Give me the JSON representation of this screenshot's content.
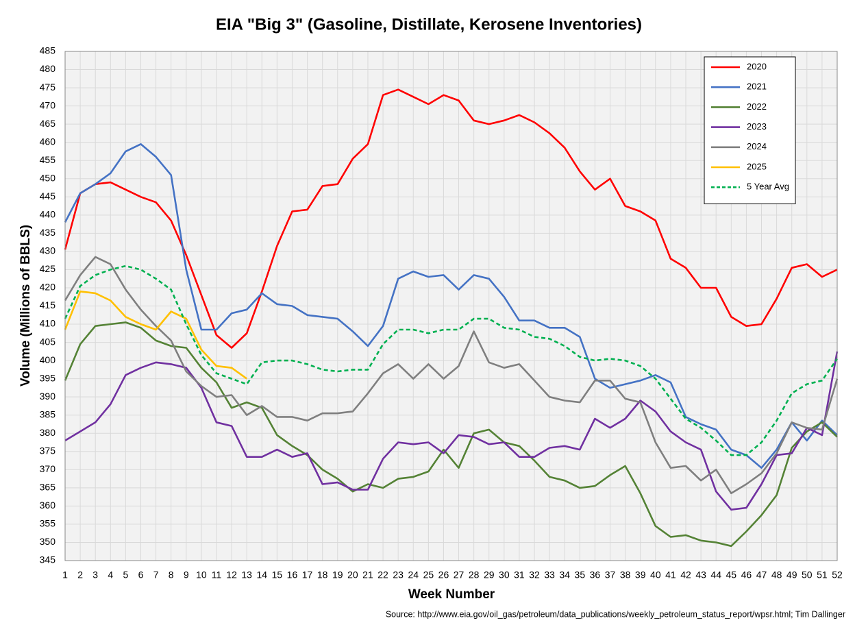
{
  "chart_data": {
    "type": "line",
    "title": "EIA \"Big 3\" (Gasoline, Distillate, Kerosene Inventories)",
    "x_label": "Week Number",
    "y_label": "Volume (Millions of BBLS)",
    "source": "Source: http://www.eia.gov/oil_gas/petroleum/data_publications/weekly_petroleum_status_report/wpsr.html; Tim Dallinger",
    "x": [
      1,
      2,
      3,
      4,
      5,
      6,
      7,
      8,
      9,
      10,
      11,
      12,
      13,
      14,
      15,
      16,
      17,
      18,
      19,
      20,
      21,
      22,
      23,
      24,
      25,
      26,
      27,
      28,
      29,
      30,
      31,
      32,
      33,
      34,
      35,
      36,
      37,
      38,
      39,
      40,
      41,
      42,
      43,
      44,
      45,
      46,
      47,
      48,
      49,
      50,
      51,
      52
    ],
    "xlim": [
      1,
      52
    ],
    "xticks": [
      1,
      2,
      3,
      4,
      5,
      6,
      7,
      8,
      9,
      10,
      11,
      12,
      13,
      14,
      15,
      16,
      17,
      18,
      19,
      20,
      21,
      22,
      23,
      24,
      25,
      26,
      27,
      28,
      29,
      30,
      31,
      32,
      33,
      34,
      35,
      36,
      37,
      38,
      39,
      40,
      41,
      42,
      43,
      44,
      45,
      46,
      47,
      48,
      49,
      50,
      51,
      52
    ],
    "ylim": [
      345,
      485
    ],
    "yticks": [
      345,
      350,
      355,
      360,
      365,
      370,
      375,
      380,
      385,
      390,
      395,
      400,
      405,
      410,
      415,
      420,
      425,
      430,
      435,
      440,
      445,
      450,
      455,
      460,
      465,
      470,
      475,
      480,
      485
    ],
    "grid": true,
    "legend": "top-right",
    "series": [
      {
        "name": "2020",
        "color": "#ff0000",
        "values": [
          430.5,
          446,
          448.5,
          449,
          447,
          445,
          443.5,
          438.5,
          429,
          418,
          407,
          403.5,
          407.5,
          419,
          431.5,
          441,
          441.5,
          448,
          448.5,
          455.5,
          459.5,
          473,
          474.5,
          472.5,
          470.5,
          473,
          471.5,
          466,
          465,
          466,
          467.5,
          465.5,
          462.5,
          458.5,
          452,
          447,
          450,
          442.5,
          441,
          438.5,
          428,
          425.5,
          420,
          420,
          412,
          409.5,
          410,
          417,
          425.5,
          426.5,
          423,
          425
        ]
      },
      {
        "name": "2021",
        "color": "#4472c4",
        "values": [
          438,
          446,
          448.5,
          451.5,
          457.5,
          459.5,
          456,
          451,
          425,
          408.5,
          408.5,
          413,
          414,
          418.5,
          415.5,
          415,
          412.5,
          412,
          411.5,
          408,
          404,
          409.5,
          422.5,
          424.5,
          423,
          423.5,
          419.5,
          423.5,
          422.5,
          417.5,
          411,
          411,
          409,
          409,
          406.5,
          395,
          392.5,
          393.5,
          394.5,
          396,
          394,
          384.5,
          382.5,
          381,
          375.5,
          374,
          370.5,
          375.5,
          383,
          378,
          383.5,
          379.5
        ]
      },
      {
        "name": "2022",
        "color": "#548235",
        "values": [
          394.5,
          404.5,
          409.5,
          410,
          410.5,
          409,
          405.5,
          404,
          403.5,
          398,
          394,
          387,
          388.5,
          387,
          379.5,
          376.5,
          374,
          370,
          367.5,
          364,
          366,
          365,
          367.5,
          368,
          369.5,
          375.5,
          370.5,
          380,
          381,
          377.5,
          376.5,
          372.5,
          368,
          367,
          365,
          365.5,
          368.5,
          371,
          363.5,
          354.5,
          351.5,
          352,
          350.5,
          350,
          349,
          353,
          357.5,
          363,
          376,
          380.5,
          383,
          379
        ]
      },
      {
        "name": "2023",
        "color": "#7030a0",
        "values": [
          378,
          380.5,
          383,
          388,
          396,
          398,
          399.5,
          399,
          398,
          392.5,
          383,
          382,
          373.5,
          373.5,
          375.5,
          373.5,
          374.5,
          366,
          366.5,
          364.5,
          364.5,
          373,
          377.5,
          377,
          377.5,
          374.5,
          379.5,
          379,
          377,
          377.5,
          373.5,
          373.5,
          376,
          376.5,
          375.5,
          384,
          381.5,
          384,
          389,
          386,
          380.5,
          377.5,
          375.5,
          364,
          359,
          359.5,
          366,
          374,
          374.5,
          381.5,
          379.5,
          402.5
        ]
      },
      {
        "name": "2024",
        "color": "#7f7f7f",
        "values": [
          416.5,
          423.5,
          428.5,
          426.5,
          419.5,
          414,
          409.5,
          405.5,
          397,
          393,
          390,
          390.5,
          385,
          387.5,
          384.5,
          384.5,
          383.5,
          385.5,
          385.5,
          386,
          391,
          396.5,
          399,
          395,
          399,
          395,
          398.5,
          408,
          399.5,
          398,
          399,
          394.5,
          390,
          389,
          388.5,
          394.5,
          394.5,
          389.5,
          388.5,
          377.5,
          370.5,
          371,
          367,
          370,
          363.5,
          366,
          369,
          374.5,
          383,
          381.5,
          381,
          395
        ]
      },
      {
        "name": "2025",
        "color": "#ffc000",
        "values": [
          408.5,
          419,
          418.5,
          416.5,
          412,
          410,
          408.5,
          413.5,
          411.5,
          403,
          398.5,
          398,
          395,
          null,
          null,
          null,
          null,
          null,
          null,
          null,
          null,
          null,
          null,
          null,
          null,
          null,
          null,
          null,
          null,
          null,
          null,
          null,
          null,
          null,
          null,
          null,
          null,
          null,
          null,
          null,
          null,
          null,
          null,
          null,
          null,
          null,
          null,
          null,
          null,
          null,
          null,
          null
        ]
      },
      {
        "name": "5 Year Avg",
        "color": "#00b050",
        "dashed": true,
        "values": [
          411.5,
          420.5,
          423.5,
          425,
          426,
          425,
          422.5,
          419.5,
          410,
          401.5,
          396.5,
          395,
          393.5,
          399.5,
          400,
          400,
          399,
          397.5,
          397,
          397.5,
          397.5,
          404.5,
          408.5,
          408.5,
          407.5,
          408.5,
          408.5,
          411.5,
          411.5,
          409,
          408.5,
          406.5,
          406,
          404,
          401,
          400,
          400.5,
          400,
          398.5,
          395,
          389.5,
          384,
          381.5,
          378,
          374,
          374,
          377.5,
          383.5,
          391,
          393.5,
          394.5,
          400.5
        ]
      }
    ]
  }
}
